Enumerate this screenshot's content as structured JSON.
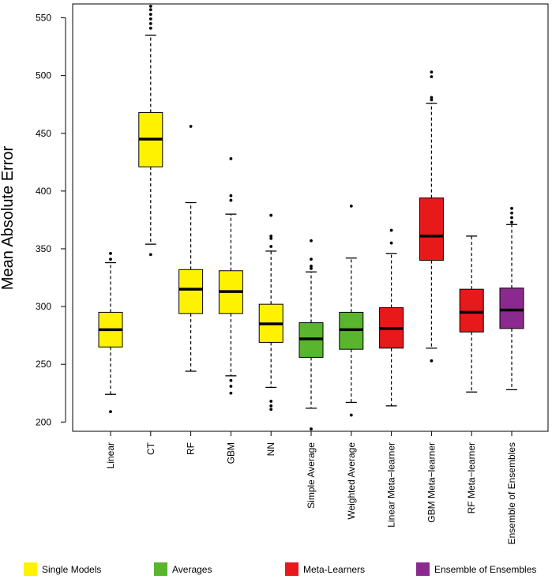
{
  "chart_data": {
    "type": "boxplot",
    "title": "",
    "xlabel": "",
    "ylabel": "Mean Absolute Error",
    "ylim": [
      192,
      562
    ],
    "yticks": [
      200,
      250,
      300,
      350,
      400,
      450,
      500,
      550
    ],
    "grid": false,
    "legend_position": "bottom",
    "colors": {
      "Single Models": "#FFF200",
      "Averages": "#5AB52E",
      "Meta-Learners": "#E8191B",
      "Ensemble of Ensembles": "#8B2A8E"
    },
    "legend": [
      "Single Models",
      "Averages",
      "Meta-Learners",
      "Ensemble of Ensembles"
    ],
    "categories": [
      "Linear",
      "CT",
      "RF",
      "GBM",
      "NN",
      "Simple Average",
      "Weighted Average",
      "Linear Meta−learner",
      "GBM Meta−learner",
      "RF Meta−learner",
      "Ensemble of Ensembles"
    ],
    "groups": [
      "Single Models",
      "Single Models",
      "Single Models",
      "Single Models",
      "Single Models",
      "Averages",
      "Averages",
      "Meta-Learners",
      "Meta-Learners",
      "Meta-Learners",
      "Ensemble of Ensembles"
    ],
    "boxes": [
      {
        "whisker_low": 224,
        "q1": 265,
        "median": 280,
        "q3": 295,
        "whisker_high": 338,
        "outliers": [
          209,
          341,
          346
        ]
      },
      {
        "whisker_low": 354,
        "q1": 421,
        "median": 445,
        "q3": 468,
        "whisker_high": 535,
        "outliers": [
          345,
          541,
          545,
          549,
          553,
          557,
          560
        ]
      },
      {
        "whisker_low": 244,
        "q1": 294,
        "median": 315,
        "q3": 332,
        "whisker_high": 390,
        "outliers": [
          456
        ]
      },
      {
        "whisker_low": 240,
        "q1": 294,
        "median": 313,
        "q3": 331,
        "whisker_high": 380,
        "outliers": [
          225,
          231,
          236,
          392,
          396,
          428
        ]
      },
      {
        "whisker_low": 230,
        "q1": 269,
        "median": 285,
        "q3": 302,
        "whisker_high": 348,
        "outliers": [
          211,
          214,
          218,
          352,
          359,
          361,
          379
        ]
      },
      {
        "whisker_low": 212,
        "q1": 256,
        "median": 272,
        "q3": 286,
        "whisker_high": 330,
        "outliers": [
          194,
          333,
          335,
          341,
          357
        ]
      },
      {
        "whisker_low": 217,
        "q1": 263,
        "median": 280,
        "q3": 295,
        "whisker_high": 342,
        "outliers": [
          206,
          387
        ]
      },
      {
        "whisker_low": 214,
        "q1": 264,
        "median": 281,
        "q3": 299,
        "whisker_high": 346,
        "outliers": [
          355,
          366
        ]
      },
      {
        "whisker_low": 264,
        "q1": 340,
        "median": 361,
        "q3": 394,
        "whisker_high": 476,
        "outliers": [
          253,
          479,
          481,
          499,
          503
        ]
      },
      {
        "whisker_low": 226,
        "q1": 278,
        "median": 295,
        "q3": 315,
        "whisker_high": 361,
        "outliers": []
      },
      {
        "whisker_low": 228,
        "q1": 281,
        "median": 297,
        "q3": 316,
        "whisker_high": 371,
        "outliers": [
          373,
          377,
          381,
          385
        ]
      }
    ]
  }
}
